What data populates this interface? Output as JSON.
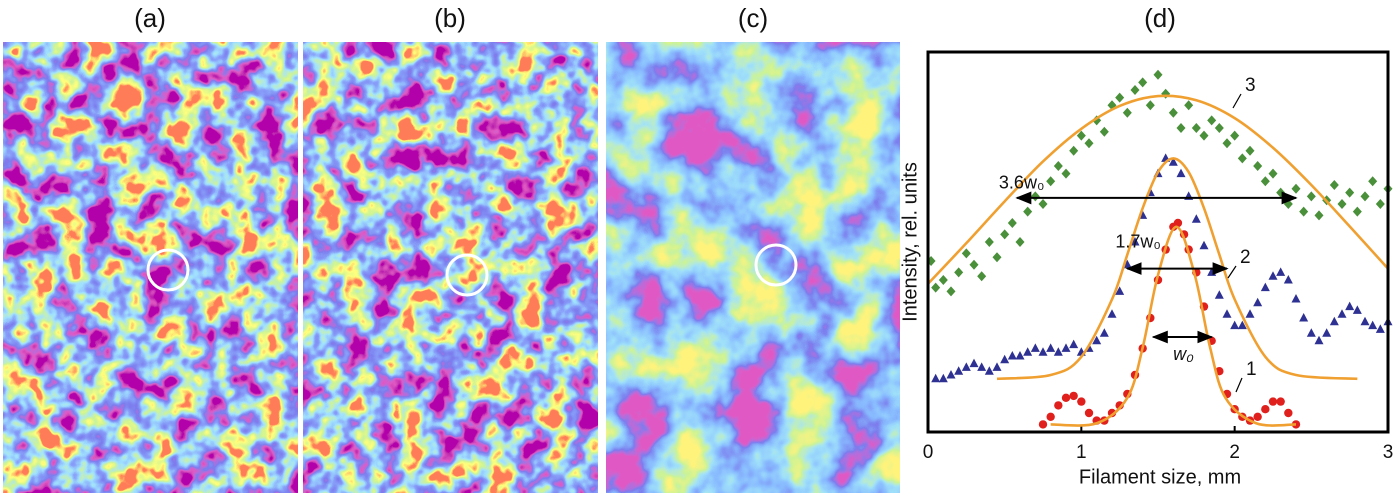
{
  "panel_labels": [
    "(a)",
    "(b)",
    "(c)"
  ],
  "chart_data": {
    "type": "scatter",
    "panel_label": "(d)",
    "x_label": "Filament size, mm",
    "y_label": "Intensity, rel. units",
    "xlim": [
      0,
      3
    ],
    "xticks": [
      0,
      1,
      2,
      3
    ],
    "ylim": [
      0,
      1
    ],
    "series": [
      {
        "name": "3",
        "color": "#4a8f3a",
        "marker": "diamond",
        "x": [
          0.02,
          0.05,
          0.1,
          0.15,
          0.2,
          0.25,
          0.3,
          0.35,
          0.4,
          0.45,
          0.5,
          0.55,
          0.6,
          0.65,
          0.7,
          0.75,
          0.8,
          0.85,
          0.9,
          0.95,
          1.0,
          1.05,
          1.1,
          1.15,
          1.2,
          1.25,
          1.3,
          1.35,
          1.4,
          1.45,
          1.5,
          1.55,
          1.6,
          1.65,
          1.7,
          1.75,
          1.8,
          1.85,
          1.9,
          1.95,
          2.0,
          2.05,
          2.1,
          2.15,
          2.2,
          2.25,
          2.3,
          2.35,
          2.4,
          2.45,
          2.5,
          2.55,
          2.6,
          2.65,
          2.7,
          2.75,
          2.8,
          2.85,
          2.9,
          2.95,
          3.0
        ],
        "values": [
          0.45,
          0.38,
          0.4,
          0.37,
          0.42,
          0.47,
          0.44,
          0.41,
          0.5,
          0.46,
          0.52,
          0.55,
          0.5,
          0.58,
          0.62,
          0.6,
          0.66,
          0.7,
          0.68,
          0.74,
          0.78,
          0.76,
          0.82,
          0.79,
          0.86,
          0.88,
          0.84,
          0.9,
          0.92,
          0.86,
          0.94,
          0.89,
          0.84,
          0.8,
          0.86,
          0.8,
          0.78,
          0.82,
          0.8,
          0.76,
          0.78,
          0.72,
          0.74,
          0.7,
          0.66,
          0.68,
          0.63,
          0.6,
          0.64,
          0.58,
          0.62,
          0.57,
          0.61,
          0.65,
          0.6,
          0.63,
          0.58,
          0.62,
          0.66,
          0.6,
          0.64
        ]
      },
      {
        "name": "2",
        "color": "#2e3192",
        "marker": "triangle",
        "x": [
          0.05,
          0.1,
          0.15,
          0.2,
          0.25,
          0.3,
          0.35,
          0.4,
          0.45,
          0.5,
          0.55,
          0.6,
          0.65,
          0.7,
          0.75,
          0.8,
          0.85,
          0.9,
          0.95,
          1.0,
          1.05,
          1.1,
          1.15,
          1.2,
          1.25,
          1.3,
          1.35,
          1.4,
          1.45,
          1.5,
          1.55,
          1.6,
          1.65,
          1.7,
          1.75,
          1.8,
          1.85,
          1.9,
          1.95,
          2.0,
          2.05,
          2.1,
          2.15,
          2.2,
          2.25,
          2.3,
          2.35,
          2.4,
          2.45,
          2.5,
          2.55,
          2.6,
          2.65,
          2.7,
          2.75,
          2.8,
          2.85,
          2.9,
          2.95,
          3.0
        ],
        "values": [
          0.14,
          0.14,
          0.15,
          0.16,
          0.17,
          0.18,
          0.17,
          0.16,
          0.17,
          0.19,
          0.2,
          0.2,
          0.21,
          0.22,
          0.21,
          0.22,
          0.21,
          0.22,
          0.23,
          0.21,
          0.22,
          0.24,
          0.26,
          0.31,
          0.37,
          0.44,
          0.5,
          0.57,
          0.63,
          0.68,
          0.72,
          0.71,
          0.68,
          0.62,
          0.56,
          0.49,
          0.42,
          0.36,
          0.31,
          0.28,
          0.28,
          0.31,
          0.34,
          0.38,
          0.41,
          0.42,
          0.4,
          0.35,
          0.3,
          0.26,
          0.24,
          0.26,
          0.29,
          0.31,
          0.33,
          0.32,
          0.29,
          0.28,
          0.27,
          0.29
        ]
      },
      {
        "name": "1",
        "color": "#e0201c",
        "marker": "circle",
        "x": [
          0.75,
          0.8,
          0.85,
          0.9,
          0.95,
          1.0,
          1.05,
          1.1,
          1.15,
          1.2,
          1.25,
          1.3,
          1.35,
          1.4,
          1.45,
          1.5,
          1.55,
          1.6,
          1.63,
          1.67,
          1.7,
          1.75,
          1.8,
          1.85,
          1.9,
          1.95,
          2.0,
          2.05,
          2.1,
          2.15,
          2.2,
          2.25,
          2.3,
          2.35,
          2.4
        ],
        "values": [
          0.02,
          0.04,
          0.07,
          0.09,
          0.095,
          0.08,
          0.05,
          0.03,
          0.03,
          0.05,
          0.07,
          0.1,
          0.15,
          0.22,
          0.3,
          0.4,
          0.48,
          0.54,
          0.55,
          0.52,
          0.48,
          0.42,
          0.33,
          0.24,
          0.16,
          0.1,
          0.06,
          0.04,
          0.03,
          0.04,
          0.06,
          0.08,
          0.08,
          0.05,
          0.02
        ]
      }
    ],
    "fits": [
      {
        "color": "#f0a030",
        "x": [
          0,
          0.25,
          0.5,
          0.75,
          1.0,
          1.25,
          1.5,
          1.75,
          2.0,
          2.25,
          2.5,
          2.75,
          3.0
        ],
        "values": [
          0.39,
          0.497,
          0.607,
          0.712,
          0.798,
          0.858,
          0.884,
          0.873,
          0.826,
          0.748,
          0.65,
          0.541,
          0.43
        ]
      },
      {
        "color": "#f0a030",
        "x": [
          0.45,
          0.8,
          1.0,
          1.2,
          1.3,
          1.4,
          1.5,
          1.6,
          1.7,
          1.8,
          1.9,
          2.0,
          2.2,
          2.4,
          2.8
        ],
        "values": [
          0.14,
          0.15,
          0.198,
          0.349,
          0.467,
          0.589,
          0.684,
          0.72,
          0.684,
          0.589,
          0.467,
          0.349,
          0.198,
          0.15,
          0.14
        ]
      },
      {
        "color": "#f0a030",
        "x": [
          0.8,
          1.1,
          1.3,
          1.4,
          1.5,
          1.62,
          1.74,
          1.84,
          1.94,
          2.14,
          2.4
        ],
        "values": [
          0.02,
          0.023,
          0.09,
          0.222,
          0.413,
          0.54,
          0.413,
          0.222,
          0.09,
          0.023,
          0.02
        ]
      }
    ],
    "annotations": [
      {
        "text": "3.6w₀",
        "x": [
          0.58,
          2.4
        ],
        "y": 0.616
      },
      {
        "text": "1.7w₀",
        "x": [
          1.3,
          1.95
        ],
        "y": 0.43
      },
      {
        "text": "w₀",
        "x": [
          1.47,
          1.85
        ],
        "y": 0.25
      }
    ]
  }
}
